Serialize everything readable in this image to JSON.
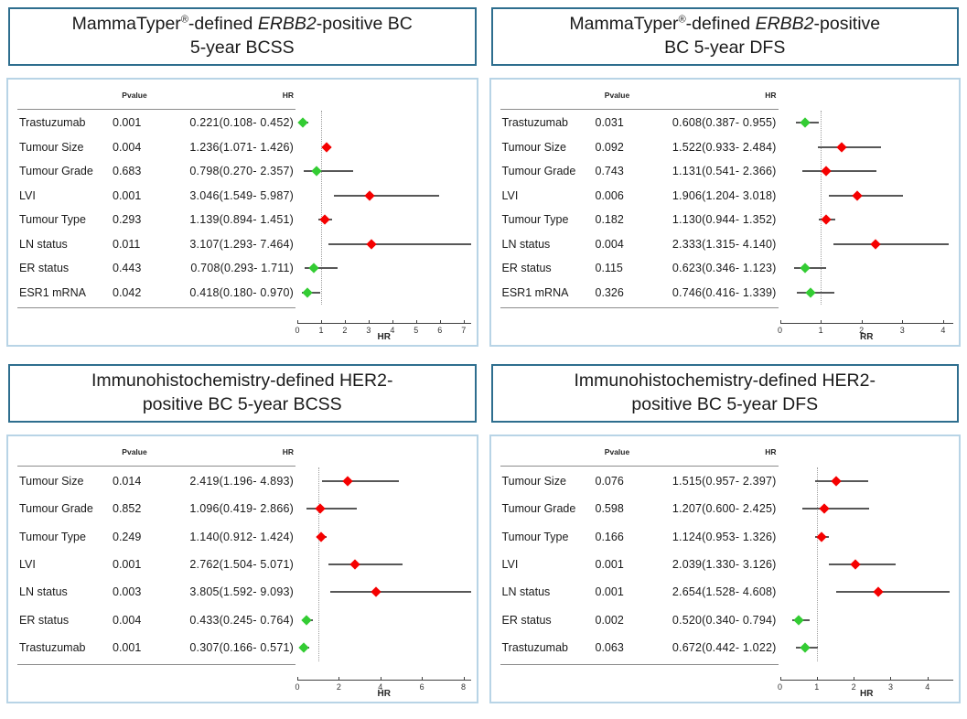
{
  "colors": {
    "title_border": "#2e6e8e",
    "chart_border": "#b8d4e6",
    "marker_red": "#f50000",
    "marker_green": "#33cc33",
    "error_bar": "#575757",
    "ref_line": "#9e9e9e"
  },
  "table_headers": {
    "pvalue": "Pvalue",
    "hr": "HR"
  },
  "chart_data": [
    {
      "type": "scatter",
      "subtype": "forest-plot",
      "title_plain": "MammaTyper®-defined ERBB2-positive BC 5-year BCSS",
      "title_lines": [
        [
          {
            "text": "MammaTyper"
          },
          {
            "text": "®",
            "style": "sup"
          },
          {
            "text": "-defined "
          },
          {
            "text": "ERBB2",
            "style": "italic"
          },
          {
            "text": "-positive BC"
          }
        ],
        [
          {
            "text": "5-year BCSS"
          }
        ]
      ],
      "rows": [
        {
          "label": "Trastuzumab",
          "pvalue": "0.001",
          "hr_text": "0.221(0.108- 0.452)",
          "hr": 0.221,
          "lo": 0.108,
          "hi": 0.452,
          "color": "green"
        },
        {
          "label": "Tumour Size",
          "pvalue": "0.004",
          "hr_text": "1.236(1.071- 1.426)",
          "hr": 1.236,
          "lo": 1.071,
          "hi": 1.426,
          "color": "red"
        },
        {
          "label": "Tumour Grade",
          "pvalue": "0.683",
          "hr_text": "0.798(0.270- 2.357)",
          "hr": 0.798,
          "lo": 0.27,
          "hi": 2.357,
          "color": "green"
        },
        {
          "label": "LVI",
          "pvalue": "0.001",
          "hr_text": "3.046(1.549- 5.987)",
          "hr": 3.046,
          "lo": 1.549,
          "hi": 5.987,
          "color": "red"
        },
        {
          "label": "Tumour Type",
          "pvalue": "0.293",
          "hr_text": "1.139(0.894- 1.451)",
          "hr": 1.139,
          "lo": 0.894,
          "hi": 1.451,
          "color": "red"
        },
        {
          "label": "LN status",
          "pvalue": "0.011",
          "hr_text": "3.107(1.293- 7.464)",
          "hr": 3.107,
          "lo": 1.293,
          "hi": 7.464,
          "color": "red"
        },
        {
          "label": "ER status",
          "pvalue": "0.443",
          "hr_text": "0.708(0.293- 1.711)",
          "hr": 0.708,
          "lo": 0.293,
          "hi": 1.711,
          "color": "green"
        },
        {
          "label": "ESR1 mRNA",
          "pvalue": "0.042",
          "hr_text": "0.418(0.180- 0.970)",
          "hr": 0.418,
          "lo": 0.18,
          "hi": 0.97,
          "color": "green"
        }
      ],
      "axis": {
        "label": "HR",
        "min": 0,
        "max": 7.3,
        "ticks": [
          0,
          1,
          2,
          3,
          4,
          5,
          6,
          7
        ],
        "ref_line": 1
      }
    },
    {
      "type": "scatter",
      "subtype": "forest-plot",
      "title_plain": "MammaTyper®-defined ERBB2-positive BC 5-year DFS",
      "title_lines": [
        [
          {
            "text": "MammaTyper"
          },
          {
            "text": "®",
            "style": "sup"
          },
          {
            "text": "-defined "
          },
          {
            "text": "ERBB2",
            "style": "italic"
          },
          {
            "text": "-positive"
          }
        ],
        [
          {
            "text": "BC 5-year DFS"
          }
        ]
      ],
      "rows": [
        {
          "label": "Trastuzumab",
          "pvalue": "0.031",
          "hr_text": "0.608(0.387- 0.955)",
          "hr": 0.608,
          "lo": 0.387,
          "hi": 0.955,
          "color": "green"
        },
        {
          "label": "Tumour Size",
          "pvalue": "0.092",
          "hr_text": "1.522(0.933- 2.484)",
          "hr": 1.522,
          "lo": 0.933,
          "hi": 2.484,
          "color": "red"
        },
        {
          "label": "Tumour Grade",
          "pvalue": "0.743",
          "hr_text": "1.131(0.541- 2.366)",
          "hr": 1.131,
          "lo": 0.541,
          "hi": 2.366,
          "color": "red"
        },
        {
          "label": "LVI",
          "pvalue": "0.006",
          "hr_text": "1.906(1.204- 3.018)",
          "hr": 1.906,
          "lo": 1.204,
          "hi": 3.018,
          "color": "red"
        },
        {
          "label": "Tumour Type",
          "pvalue": "0.182",
          "hr_text": "1.130(0.944- 1.352)",
          "hr": 1.13,
          "lo": 0.944,
          "hi": 1.352,
          "color": "red"
        },
        {
          "label": "LN status",
          "pvalue": "0.004",
          "hr_text": "2.333(1.315- 4.140)",
          "hr": 2.333,
          "lo": 1.315,
          "hi": 4.14,
          "color": "red"
        },
        {
          "label": "ER status",
          "pvalue": "0.115",
          "hr_text": "0.623(0.346- 1.123)",
          "hr": 0.623,
          "lo": 0.346,
          "hi": 1.123,
          "color": "green"
        },
        {
          "label": "ESR1 mRNA",
          "pvalue": "0.326",
          "hr_text": "0.746(0.416- 1.339)",
          "hr": 0.746,
          "lo": 0.416,
          "hi": 1.339,
          "color": "green"
        }
      ],
      "axis": {
        "label": "RR",
        "min": 0,
        "max": 4.25,
        "ticks": [
          0,
          1,
          2,
          3,
          4
        ],
        "ref_line": 1
      }
    },
    {
      "type": "scatter",
      "subtype": "forest-plot",
      "title_plain": "Immunohistochemistry-defined HER2-positive BC 5-year BCSS",
      "title_lines": [
        [
          {
            "text": "Immunohistochemistry-defined HER2-"
          }
        ],
        [
          {
            "text": "positive BC 5-year BCSS"
          }
        ]
      ],
      "rows": [
        {
          "label": "Tumour Size",
          "pvalue": "0.014",
          "hr_text": "2.419(1.196- 4.893)",
          "hr": 2.419,
          "lo": 1.196,
          "hi": 4.893,
          "color": "red"
        },
        {
          "label": "Tumour Grade",
          "pvalue": "0.852",
          "hr_text": "1.096(0.419- 2.866)",
          "hr": 1.096,
          "lo": 0.419,
          "hi": 2.866,
          "color": "red"
        },
        {
          "label": "Tumour Type",
          "pvalue": "0.249",
          "hr_text": "1.140(0.912- 1.424)",
          "hr": 1.14,
          "lo": 0.912,
          "hi": 1.424,
          "color": "red"
        },
        {
          "label": "LVI",
          "pvalue": "0.001",
          "hr_text": "2.762(1.504- 5.071)",
          "hr": 2.762,
          "lo": 1.504,
          "hi": 5.071,
          "color": "red"
        },
        {
          "label": "LN status",
          "pvalue": "0.003",
          "hr_text": "3.805(1.592- 9.093)",
          "hr": 3.805,
          "lo": 1.592,
          "hi": 9.093,
          "color": "red"
        },
        {
          "label": "ER status",
          "pvalue": "0.004",
          "hr_text": "0.433(0.245- 0.764)",
          "hr": 0.433,
          "lo": 0.245,
          "hi": 0.764,
          "color": "green"
        },
        {
          "label": "Trastuzumab",
          "pvalue": "0.001",
          "hr_text": "0.307(0.166- 0.571)",
          "hr": 0.307,
          "lo": 0.166,
          "hi": 0.571,
          "color": "green"
        }
      ],
      "axis": {
        "label": "HR",
        "min": 0,
        "max": 8.35,
        "ticks": [
          0,
          2,
          4,
          6,
          8
        ],
        "ref_line": 1
      }
    },
    {
      "type": "scatter",
      "subtype": "forest-plot",
      "title_plain": "Immunohistochemistry-defined HER2-positive BC 5-year DFS",
      "title_lines": [
        [
          {
            "text": "Immunohistochemistry-defined HER2-"
          }
        ],
        [
          {
            "text": "positive BC 5-year DFS"
          }
        ]
      ],
      "rows": [
        {
          "label": "Tumour Size",
          "pvalue": "0.076",
          "hr_text": "1.515(0.957- 2.397)",
          "hr": 1.515,
          "lo": 0.957,
          "hi": 2.397,
          "color": "red"
        },
        {
          "label": "Tumour Grade",
          "pvalue": "0.598",
          "hr_text": "1.207(0.600- 2.425)",
          "hr": 1.207,
          "lo": 0.6,
          "hi": 2.425,
          "color": "red"
        },
        {
          "label": "Tumour Type",
          "pvalue": "0.166",
          "hr_text": "1.124(0.953- 1.326)",
          "hr": 1.124,
          "lo": 0.953,
          "hi": 1.326,
          "color": "red"
        },
        {
          "label": "LVI",
          "pvalue": "0.001",
          "hr_text": "2.039(1.330- 3.126)",
          "hr": 2.039,
          "lo": 1.33,
          "hi": 3.126,
          "color": "red"
        },
        {
          "label": "LN status",
          "pvalue": "0.001",
          "hr_text": "2.654(1.528- 4.608)",
          "hr": 2.654,
          "lo": 1.528,
          "hi": 4.608,
          "color": "red"
        },
        {
          "label": "ER status",
          "pvalue": "0.002",
          "hr_text": "0.520(0.340- 0.794)",
          "hr": 0.52,
          "lo": 0.34,
          "hi": 0.794,
          "color": "green"
        },
        {
          "label": "Trastuzumab",
          "pvalue": "0.063",
          "hr_text": "0.672(0.442- 1.022)",
          "hr": 0.672,
          "lo": 0.442,
          "hi": 1.022,
          "color": "green"
        }
      ],
      "axis": {
        "label": "HR",
        "min": 0,
        "max": 4.7,
        "ticks": [
          0,
          1,
          2,
          3,
          4
        ],
        "ref_line": 1
      }
    }
  ]
}
